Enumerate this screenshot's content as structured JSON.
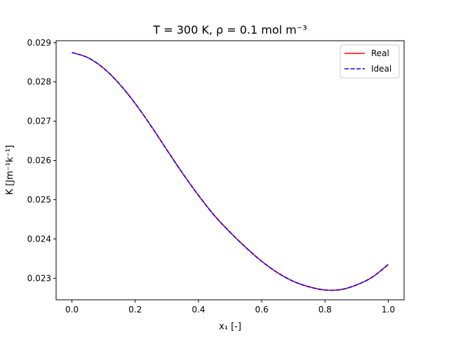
{
  "chart_data": {
    "type": "line",
    "title": "T = 300 K, ρ = 0.1 mol m⁻³",
    "xlabel": "x₁ [-]",
    "ylabel": "K [Jm⁻¹k⁻¹]",
    "xlim": [
      -0.05,
      1.05
    ],
    "ylim": [
      0.02245,
      0.02905
    ],
    "xticks": [
      0.0,
      0.2,
      0.4,
      0.6,
      0.8,
      1.0
    ],
    "xtick_labels": [
      "0.0",
      "0.2",
      "0.4",
      "0.6",
      "0.8",
      "1.0"
    ],
    "yticks": [
      0.023,
      0.024,
      0.025,
      0.026,
      0.027,
      0.028,
      0.029
    ],
    "ytick_labels": [
      "0.023",
      "0.024",
      "0.025",
      "0.026",
      "0.027",
      "0.028",
      "0.029"
    ],
    "grid": false,
    "legend_position": "top-right",
    "x": [
      0.0,
      0.05,
      0.1,
      0.15,
      0.2,
      0.25,
      0.3,
      0.35,
      0.4,
      0.45,
      0.5,
      0.55,
      0.6,
      0.65,
      0.7,
      0.75,
      0.8,
      0.85,
      0.9,
      0.95,
      1.0
    ],
    "series": [
      {
        "name": "Real",
        "color": "#ff0000",
        "dash": "solid",
        "values": [
          0.02875,
          0.02862,
          0.02835,
          0.02795,
          0.02745,
          0.02688,
          0.02627,
          0.02567,
          0.02511,
          0.0246,
          0.02417,
          0.02378,
          0.02343,
          0.02314,
          0.02292,
          0.02278,
          0.0227,
          0.02271,
          0.02283,
          0.02303,
          0.02335
        ]
      },
      {
        "name": "Ideal",
        "color": "#0000ff",
        "dash": "dashed",
        "values": [
          0.02875,
          0.02862,
          0.02835,
          0.02795,
          0.02745,
          0.02688,
          0.02627,
          0.02567,
          0.02511,
          0.0246,
          0.02417,
          0.02378,
          0.02343,
          0.02314,
          0.02292,
          0.02278,
          0.0227,
          0.02271,
          0.02283,
          0.02303,
          0.02335
        ]
      }
    ]
  }
}
